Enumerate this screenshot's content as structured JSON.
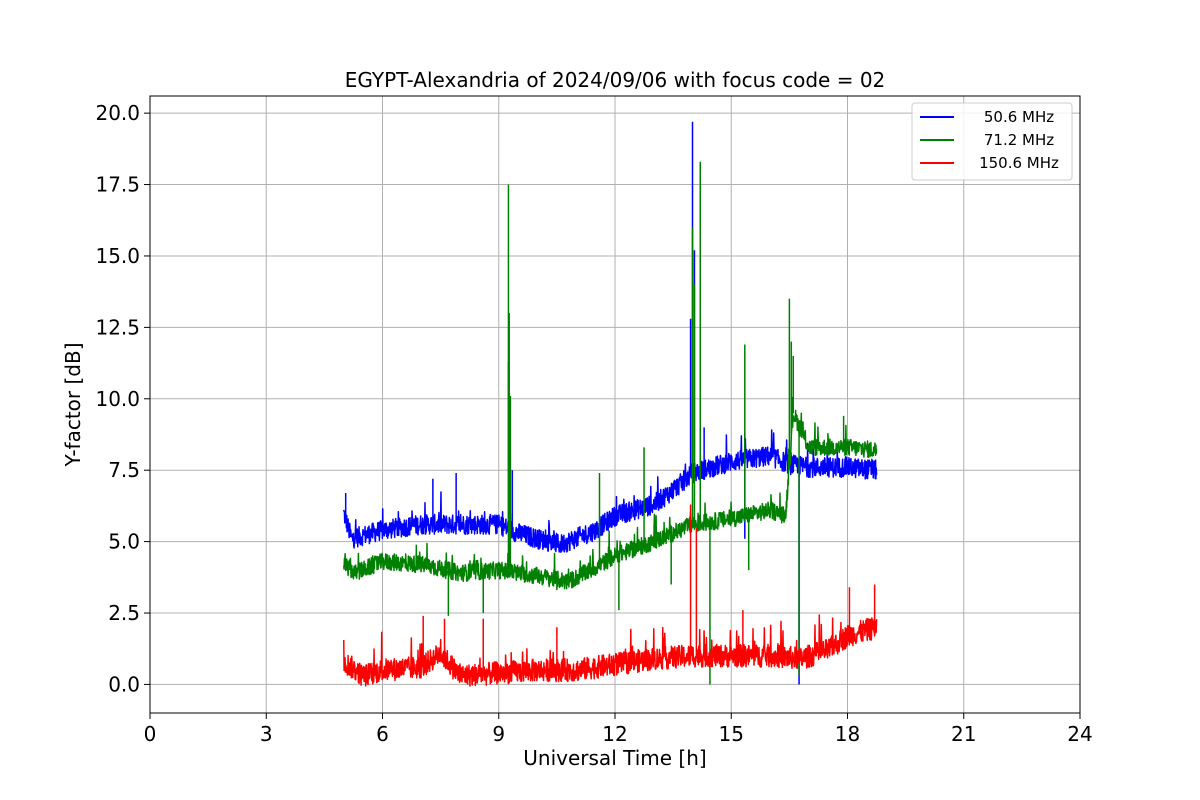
{
  "chart_data": {
    "type": "line",
    "title": "EGYPT-Alexandria of 2024/09/06 with focus code = 02",
    "xlabel": "Universal Time [h]",
    "ylabel": "Y-factor [dB]",
    "xlim": [
      0,
      24
    ],
    "ylim": [
      -1.0,
      20.6
    ],
    "xticks": [
      0,
      3,
      6,
      9,
      12,
      15,
      18,
      21,
      24
    ],
    "xtick_labels": [
      "0",
      "3",
      "6",
      "9",
      "12",
      "15",
      "18",
      "21",
      "24"
    ],
    "yticks": [
      0.0,
      2.5,
      5.0,
      7.5,
      10.0,
      12.5,
      15.0,
      17.5,
      20.0
    ],
    "ytick_labels": [
      "0.0",
      "2.5",
      "5.0",
      "7.5",
      "10.0",
      "12.5",
      "15.0",
      "17.5",
      "20.0"
    ],
    "grid": true,
    "legend_position": "top-right",
    "series": [
      {
        "name": "50.6 MHz",
        "color": "#0000ff",
        "baseline": [
          [
            5.0,
            6.0
          ],
          [
            5.2,
            5.1
          ],
          [
            6.0,
            5.4
          ],
          [
            7.0,
            5.6
          ],
          [
            8.0,
            5.6
          ],
          [
            9.0,
            5.6
          ],
          [
            9.5,
            5.3
          ],
          [
            10.0,
            5.1
          ],
          [
            10.6,
            4.9
          ],
          [
            11.5,
            5.4
          ],
          [
            12.0,
            5.9
          ],
          [
            13.0,
            6.3
          ],
          [
            13.5,
            6.8
          ],
          [
            14.0,
            7.4
          ],
          [
            15.0,
            7.8
          ],
          [
            16.0,
            8.0
          ],
          [
            16.5,
            7.7
          ],
          [
            17.0,
            7.6
          ],
          [
            18.0,
            7.6
          ],
          [
            18.75,
            7.5
          ]
        ],
        "noise": 0.35,
        "spikes": [
          [
            5.05,
            6.7
          ],
          [
            7.3,
            7.2
          ],
          [
            7.9,
            7.4
          ],
          [
            9.25,
            11.3
          ],
          [
            9.35,
            7.5
          ],
          [
            13.95,
            12.8
          ],
          [
            14.0,
            19.7
          ],
          [
            14.05,
            15.2
          ],
          [
            14.3,
            9.0
          ],
          [
            15.35,
            8.8
          ],
          [
            15.35,
            5.1
          ],
          [
            16.75,
            0.0
          ],
          [
            16.8,
            7.9
          ]
        ]
      },
      {
        "name": "71.2 MHz",
        "color": "#008000",
        "baseline": [
          [
            5.0,
            4.2
          ],
          [
            5.3,
            3.9
          ],
          [
            6.0,
            4.3
          ],
          [
            7.0,
            4.2
          ],
          [
            8.0,
            3.9
          ],
          [
            9.0,
            4.0
          ],
          [
            10.0,
            3.8
          ],
          [
            10.8,
            3.6
          ],
          [
            11.5,
            4.1
          ],
          [
            12.0,
            4.5
          ],
          [
            13.0,
            5.0
          ],
          [
            14.0,
            5.6
          ],
          [
            15.0,
            5.8
          ],
          [
            16.0,
            6.1
          ],
          [
            16.4,
            5.9
          ],
          [
            16.6,
            9.5
          ],
          [
            17.0,
            8.3
          ],
          [
            18.0,
            8.3
          ],
          [
            18.75,
            8.2
          ]
        ],
        "noise": 0.3,
        "spikes": [
          [
            7.7,
            2.4
          ],
          [
            8.6,
            2.5
          ],
          [
            9.25,
            17.5
          ],
          [
            9.27,
            13.0
          ],
          [
            9.3,
            10.1
          ],
          [
            10.5,
            3.3
          ],
          [
            11.6,
            7.4
          ],
          [
            12.1,
            2.6
          ],
          [
            12.75,
            8.3
          ],
          [
            13.45,
            3.5
          ],
          [
            14.0,
            16.0
          ],
          [
            14.05,
            14.0
          ],
          [
            14.2,
            18.3
          ],
          [
            14.45,
            0.0
          ],
          [
            15.35,
            11.9
          ],
          [
            15.45,
            4.0
          ],
          [
            16.5,
            13.5
          ],
          [
            16.55,
            12.0
          ],
          [
            16.6,
            11.5
          ],
          [
            16.75,
            0.3
          ],
          [
            17.9,
            9.4
          ]
        ]
      },
      {
        "name": "150.6 MHz",
        "color": "#ff0000",
        "baseline": [
          [
            5.0,
            0.8
          ],
          [
            5.5,
            0.3
          ],
          [
            6.0,
            0.5
          ],
          [
            7.0,
            0.6
          ],
          [
            7.5,
            1.1
          ],
          [
            8.0,
            0.3
          ],
          [
            9.0,
            0.4
          ],
          [
            10.0,
            0.5
          ],
          [
            11.0,
            0.5
          ],
          [
            12.0,
            0.7
          ],
          [
            13.0,
            0.9
          ],
          [
            14.0,
            1.0
          ],
          [
            15.0,
            1.0
          ],
          [
            16.0,
            1.0
          ],
          [
            16.8,
            0.9
          ],
          [
            17.5,
            1.2
          ],
          [
            18.0,
            1.7
          ],
          [
            18.75,
            2.0
          ]
        ],
        "noise": 0.4,
        "spikes": [
          [
            7.05,
            2.4
          ],
          [
            7.6,
            2.3
          ],
          [
            8.6,
            2.3
          ],
          [
            10.5,
            2.0
          ],
          [
            13.95,
            6.3
          ],
          [
            14.1,
            5.5
          ],
          [
            15.3,
            2.6
          ],
          [
            18.05,
            3.4
          ],
          [
            18.7,
            3.5
          ]
        ]
      }
    ]
  }
}
